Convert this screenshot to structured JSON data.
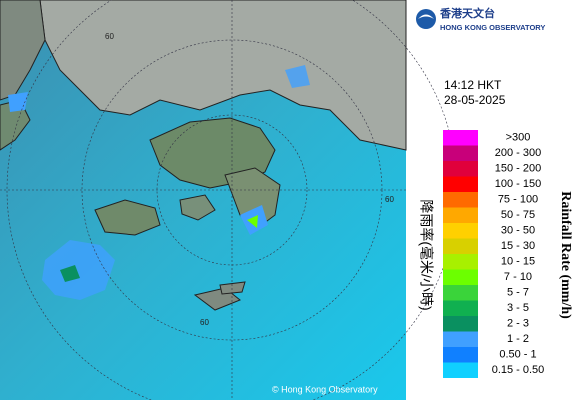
{
  "logo": {
    "chinese": "香港天文台",
    "english": "HONG KONG OBSERVATORY"
  },
  "time": "14:12 HKT",
  "date": "28-05-2025",
  "legend": {
    "label_zh": "降雨率(毫米/小時)",
    "label_en": "Rainfall Rate (mm/h)",
    "entries": [
      {
        "label": ">300",
        "color": "#ff00ff"
      },
      {
        "label": "200 - 300",
        "color": "#c8007a"
      },
      {
        "label": "150 - 200",
        "color": "#e0003c"
      },
      {
        "label": "100 - 150",
        "color": "#ff0000"
      },
      {
        "label": "75 - 100",
        "color": "#ff6a00"
      },
      {
        "label": "50 - 75",
        "color": "#ffa800"
      },
      {
        "label": "30 - 50",
        "color": "#ffd000"
      },
      {
        "label": "15 - 30",
        "color": "#d8d000"
      },
      {
        "label": "10 - 15",
        "color": "#a8f000"
      },
      {
        "label": "7 - 10",
        "color": "#6cff00"
      },
      {
        "label": "5 - 7",
        "color": "#3ad43a"
      },
      {
        "label": "3 - 5",
        "color": "#10b050"
      },
      {
        "label": "2 - 3",
        "color": "#0a9060"
      },
      {
        "label": "1 - 2",
        "color": "#40a0ff"
      },
      {
        "label": "0.50 - 1",
        "color": "#1080ff"
      },
      {
        "label": "0.15 - 0.50",
        "color": "#10d0ff"
      }
    ]
  },
  "map": {
    "ring_labels": [
      "60",
      "60",
      "60"
    ],
    "copyright": "© Hong Kong Observatory"
  }
}
